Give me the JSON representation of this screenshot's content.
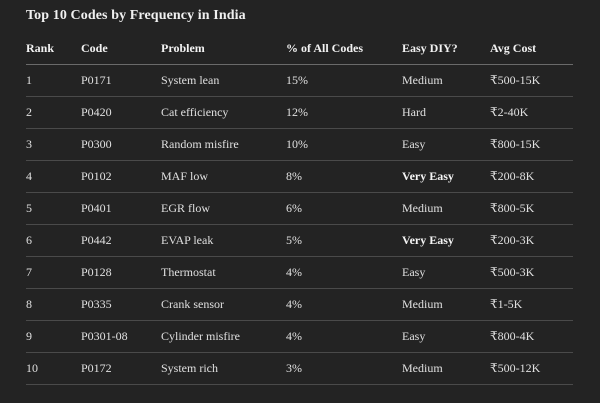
{
  "title": "Top 10 Codes by Frequency in India",
  "table": {
    "headers": {
      "rank": "Rank",
      "code": "Code",
      "problem": "Problem",
      "pct": "% of All Codes",
      "diy": "Easy DIY?",
      "cost": "Avg Cost"
    },
    "rows": [
      {
        "rank": "1",
        "code": "P0171",
        "problem": "System lean",
        "pct": "15%",
        "diy": "Medium",
        "cost": "₹500-15K"
      },
      {
        "rank": "2",
        "code": "P0420",
        "problem": "Cat efficiency",
        "pct": "12%",
        "diy": "Hard",
        "cost": "₹2-40K"
      },
      {
        "rank": "3",
        "code": "P0300",
        "problem": "Random misfire",
        "pct": "10%",
        "diy": "Easy",
        "cost": "₹800-15K"
      },
      {
        "rank": "4",
        "code": "P0102",
        "problem": "MAF low",
        "pct": "8%",
        "diy": "Very Easy",
        "cost": "₹200-8K"
      },
      {
        "rank": "5",
        "code": "P0401",
        "problem": "EGR flow",
        "pct": "6%",
        "diy": "Medium",
        "cost": "₹800-5K"
      },
      {
        "rank": "6",
        "code": "P0442",
        "problem": "EVAP leak",
        "pct": "5%",
        "diy": "Very Easy",
        "cost": "₹200-3K"
      },
      {
        "rank": "7",
        "code": "P0128",
        "problem": "Thermostat",
        "pct": "4%",
        "diy": "Easy",
        "cost": "₹500-3K"
      },
      {
        "rank": "8",
        "code": "P0335",
        "problem": "Crank sensor",
        "pct": "4%",
        "diy": "Medium",
        "cost": "₹1-5K"
      },
      {
        "rank": "9",
        "code": "P0301-08",
        "problem": "Cylinder misfire",
        "pct": "4%",
        "diy": "Easy",
        "cost": "₹800-4K"
      },
      {
        "rank": "10",
        "code": "P0172",
        "problem": "System rich",
        "pct": "3%",
        "diy": "Medium",
        "cost": "₹500-12K"
      }
    ]
  }
}
